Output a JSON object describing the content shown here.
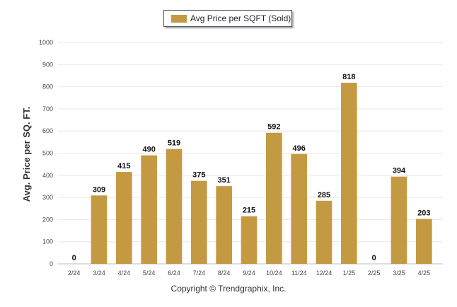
{
  "chart_data": {
    "type": "bar",
    "categories": [
      "2/24",
      "3/24",
      "4/24",
      "5/24",
      "6/24",
      "7/24",
      "8/24",
      "9/24",
      "10/24",
      "11/24",
      "12/24",
      "1/25",
      "2/25",
      "3/25",
      "4/25"
    ],
    "series": [
      {
        "name": "Avg Price per SQFT (Sold)",
        "values": [
          0,
          309,
          415,
          490,
          519,
          375,
          351,
          215,
          592,
          496,
          285,
          818,
          0,
          394,
          203
        ]
      }
    ],
    "data_labels": [
      "0",
      "309",
      "415",
      "490",
      "519",
      "375",
      "351",
      "215",
      "592",
      "496",
      "285",
      "818",
      "0",
      "394",
      "203"
    ],
    "ylabel": "Avg. Price per SQ. FT.",
    "xlabel": "",
    "ylim": [
      0,
      1000
    ],
    "yticks": [
      0,
      100,
      200,
      300,
      400,
      500,
      600,
      700,
      800,
      900,
      1000
    ],
    "ytick_labels": [
      "0",
      "100",
      "200",
      "300",
      "400",
      "500",
      "600",
      "700",
      "800",
      "900",
      "1000"
    ],
    "grid": true,
    "legend": "top-center",
    "bar_color": "#c39a42"
  },
  "footer": {
    "copyright": "Copyright © Trendgraphix, Inc."
  }
}
